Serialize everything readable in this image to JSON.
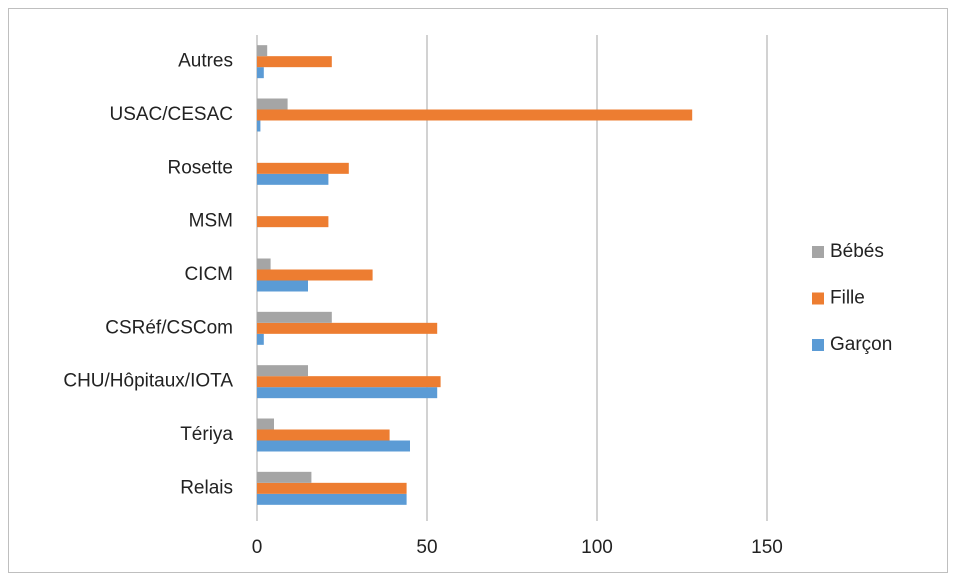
{
  "chart_data": {
    "type": "barh",
    "categories": [
      "Relais",
      "Tériya",
      "CHU/Hôpitaux/IOTA",
      "CSRéf/CSCom",
      "CICM",
      "MSM",
      "Rosette",
      "USAC/CESAC",
      "Autres"
    ],
    "series": [
      {
        "name": "Garçon",
        "color": "#5b9bd5",
        "values": [
          44,
          45,
          53,
          2,
          15,
          0,
          21,
          1,
          2
        ]
      },
      {
        "name": "Fille",
        "color": "#ed7d31",
        "values": [
          44,
          39,
          54,
          53,
          34,
          21,
          27,
          128,
          22
        ]
      },
      {
        "name": "Bébés",
        "color": "#a5a5a5",
        "values": [
          16,
          5,
          15,
          22,
          4,
          0,
          0,
          9,
          3
        ]
      }
    ],
    "xlim": [
      0,
      150
    ],
    "xticks": [
      0,
      50,
      100,
      150
    ],
    "grid": true,
    "legend": "right"
  }
}
